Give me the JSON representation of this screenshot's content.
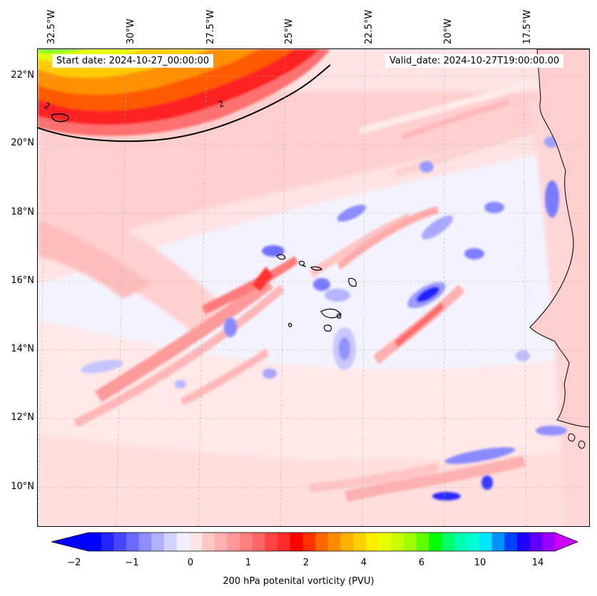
{
  "figure": {
    "start_label": "Start date: 2024-10-27_00:00:00",
    "valid_label": "Valid_date: 2024-10-27T19:00:00.00",
    "colorbar_label": "200 hPa potenital vorticity (PVU)",
    "contour_label": "2"
  },
  "map": {
    "lon_labels": [
      "32.5°W",
      "30°W",
      "27.5°W",
      "25°W",
      "22.5°W",
      "20°W",
      "17.5°W"
    ],
    "lat_labels": [
      "22°N",
      "20°N",
      "18°N",
      "16°N",
      "14°N",
      "12°N",
      "10°N"
    ],
    "lon_range": [
      -32.7,
      -15.3
    ],
    "lat_range": [
      8.9,
      22.8
    ]
  },
  "colorbar": {
    "ticks": [
      "−2",
      "−1",
      "0",
      "1",
      "2",
      "4",
      "6",
      "10",
      "14"
    ],
    "colors": [
      "#0000ff",
      "#2323ff",
      "#4646ff",
      "#6a6aff",
      "#8d8dff",
      "#b0b0ff",
      "#d3d3ff",
      "#f0f0ff",
      "#ffe5e5",
      "#ffc8c8",
      "#ffb0b0",
      "#ff9898",
      "#ff7f7f",
      "#ff6666",
      "#ff4444",
      "#ff2a2a",
      "#ff0000",
      "#ff3300",
      "#ff6600",
      "#ff8c00",
      "#ffb000",
      "#ffd000",
      "#ffee00",
      "#e8ff00",
      "#c8ff00",
      "#a0ff00",
      "#60ff00",
      "#00ff00",
      "#00ff66",
      "#00ffaa",
      "#00ffd5",
      "#00e5ff",
      "#0090ff",
      "#0040ff",
      "#2000ff",
      "#6000ff",
      "#9900ff"
    ],
    "under_color": "#0000ff",
    "over_color": "#cc00ff"
  },
  "colors": {
    "background_low": "#f3f3ff",
    "coast": "#000000"
  }
}
